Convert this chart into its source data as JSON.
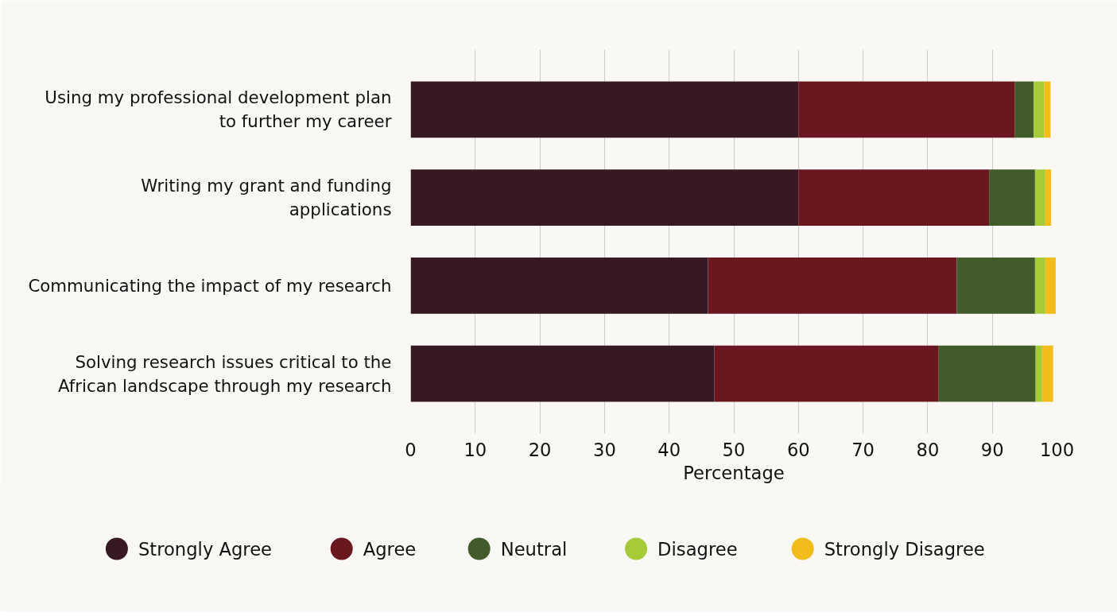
{
  "chart_data": {
    "type": "bar",
    "orientation": "horizontal",
    "stacked": true,
    "xlabel": "Percentage",
    "categories": [
      "Using my professional development plan to further my career",
      "Writing my grant and funding applications",
      "Communicating the impact of my research",
      "Solving research issues critical to the African landscape through my research"
    ],
    "series": [
      {
        "name": "Strongly Agree",
        "color": "#361923",
        "values": [
          60.0,
          60.0,
          46.0,
          47.0
        ]
      },
      {
        "name": "Agree",
        "color": "#6b1720",
        "values": [
          33.5,
          29.5,
          38.5,
          34.7
        ]
      },
      {
        "name": "Neutral",
        "color": "#415b2a",
        "values": [
          2.9,
          7.1,
          12.1,
          15.0
        ]
      },
      {
        "name": "Disagree",
        "color": "#a5cb38",
        "values": [
          1.6,
          1.6,
          1.6,
          1.0
        ]
      },
      {
        "name": "Strongly Disagree",
        "color": "#f2bc1b",
        "values": [
          1.0,
          0.9,
          1.6,
          1.7
        ]
      }
    ],
    "xlim": [
      0,
      100
    ],
    "xticks": [
      0,
      10,
      20,
      30,
      40,
      50,
      60,
      70,
      80,
      90,
      100
    ],
    "grid": "x",
    "legend": "bottom",
    "marker": "circle"
  }
}
